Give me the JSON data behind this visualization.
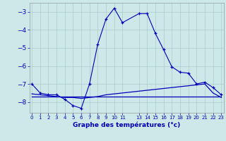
{
  "xlabel": "Graphe des températures (°c)",
  "bg_color": "#cce8e8",
  "grid_color": "#aacccc",
  "line_color": "#0000bb",
  "x_ticks": [
    0,
    1,
    2,
    3,
    4,
    5,
    6,
    7,
    8,
    9,
    10,
    11,
    13,
    14,
    15,
    16,
    17,
    18,
    19,
    20,
    21,
    22,
    23
  ],
  "ylim": [
    -8.6,
    -2.5
  ],
  "xlim": [
    -0.3,
    23.3
  ],
  "yticks": [
    -8,
    -7,
    -6,
    -5,
    -4,
    -3
  ],
  "line1_x": [
    0,
    1,
    2,
    3,
    4,
    5,
    6,
    7,
    8,
    9,
    10,
    11,
    13,
    14,
    15,
    16,
    17,
    18,
    19,
    20,
    21,
    22,
    23
  ],
  "line1_y": [
    -7.0,
    -7.5,
    -7.6,
    -7.6,
    -7.85,
    -8.2,
    -8.35,
    -7.0,
    -4.8,
    -3.4,
    -2.8,
    -3.6,
    -3.1,
    -3.1,
    -4.2,
    -5.1,
    -6.05,
    -6.35,
    -6.4,
    -7.0,
    -6.9,
    -7.2,
    -7.6
  ],
  "line2_x": [
    0,
    1,
    2,
    3,
    4,
    5,
    6,
    7,
    8,
    9,
    10,
    11,
    13,
    14,
    15,
    16,
    17,
    18,
    19,
    20,
    21,
    22,
    23
  ],
  "line2_y": [
    -7.55,
    -7.6,
    -7.65,
    -7.7,
    -7.75,
    -7.75,
    -7.8,
    -7.75,
    -7.7,
    -7.6,
    -7.55,
    -7.5,
    -7.4,
    -7.35,
    -7.3,
    -7.25,
    -7.2,
    -7.15,
    -7.1,
    -7.05,
    -7.0,
    -7.5,
    -7.75
  ],
  "line3_x": [
    0,
    23
  ],
  "line3_y": [
    -7.7,
    -7.7
  ]
}
